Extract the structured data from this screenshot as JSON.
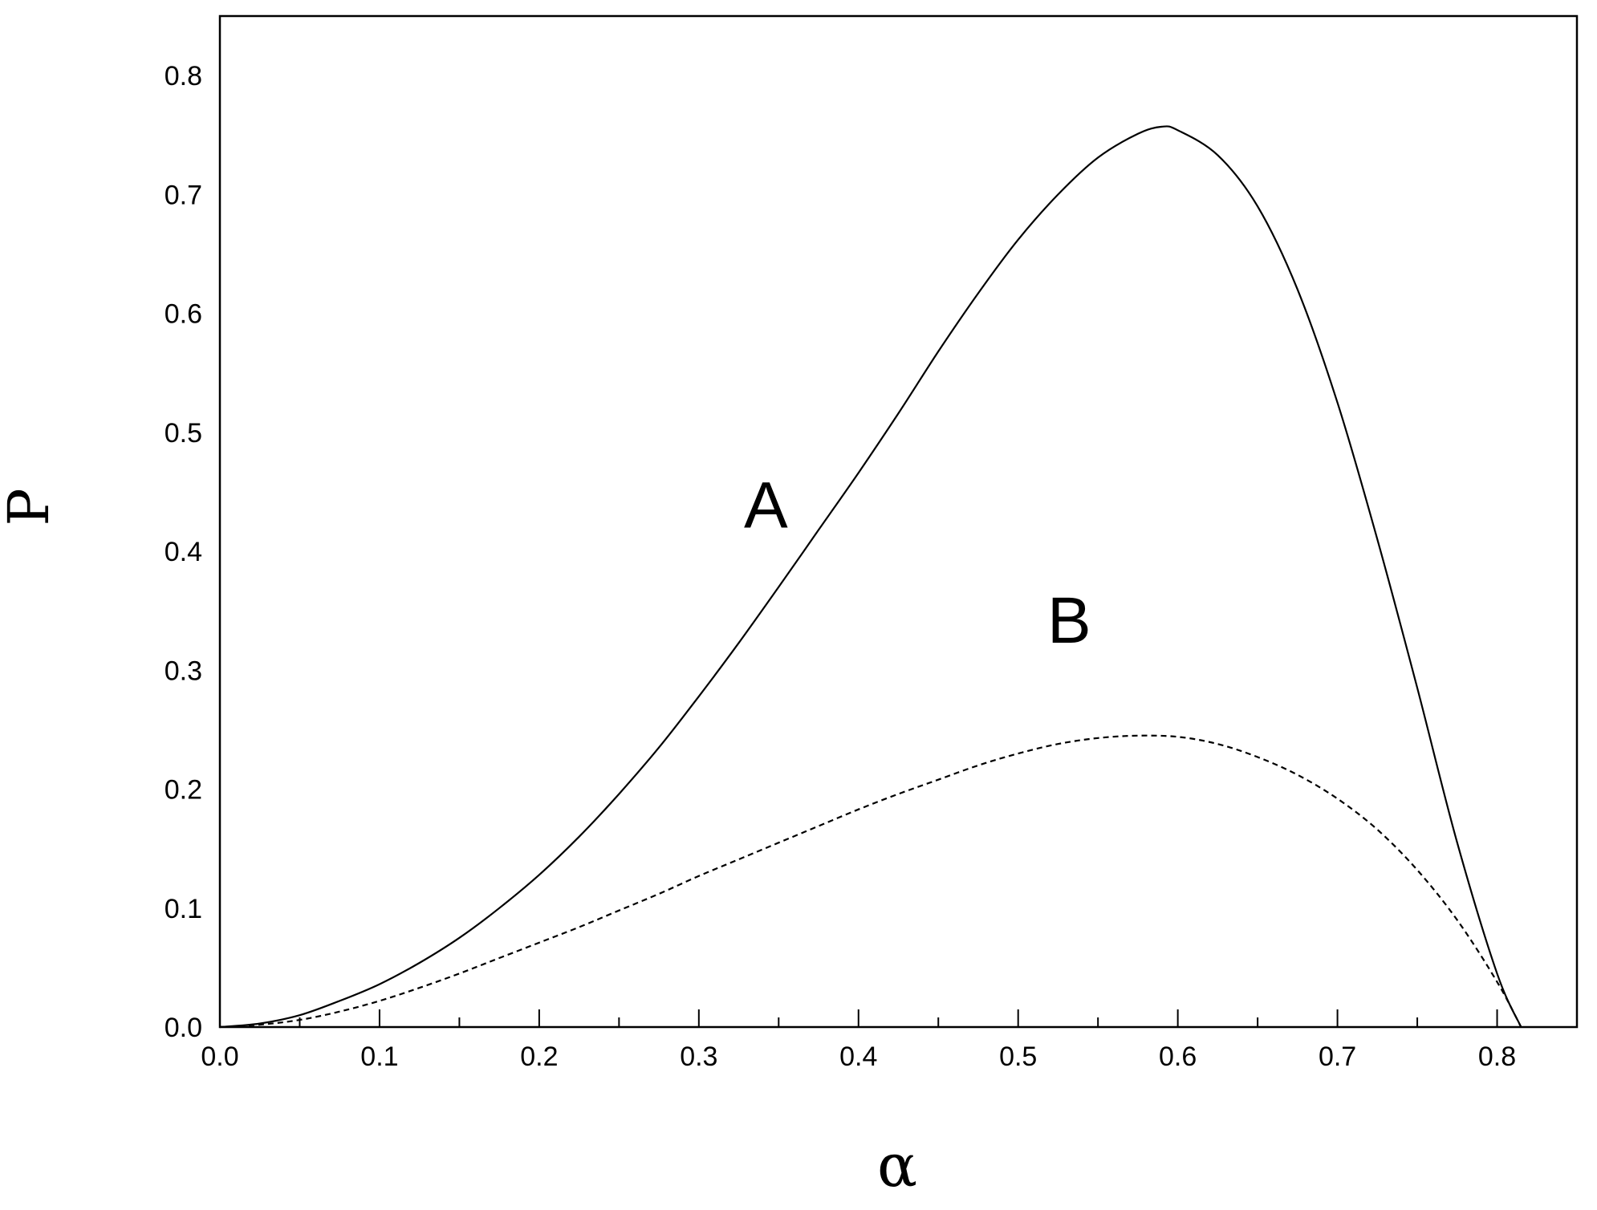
{
  "chart_data": {
    "type": "line",
    "title": "",
    "xlabel": "α",
    "ylabel": "P",
    "xlim": [
      0.0,
      0.85
    ],
    "ylim": [
      0.0,
      0.85
    ],
    "x_ticks": [
      "0.0",
      "0.1",
      "0.2",
      "0.3",
      "0.4",
      "0.5",
      "0.6",
      "0.7",
      "0.8"
    ],
    "y_ticks": [
      "0.0",
      "0.1",
      "0.2",
      "0.3",
      "0.4",
      "0.5",
      "0.6",
      "0.7",
      "0.8"
    ],
    "grid": false,
    "legend": "none",
    "series": [
      {
        "name": "A",
        "style": "solid",
        "x": [
          0.0,
          0.025,
          0.05,
          0.075,
          0.1,
          0.125,
          0.15,
          0.175,
          0.2,
          0.225,
          0.25,
          0.275,
          0.3,
          0.325,
          0.35,
          0.375,
          0.4,
          0.425,
          0.45,
          0.475,
          0.5,
          0.525,
          0.55,
          0.575,
          0.59,
          0.6,
          0.625,
          0.65,
          0.675,
          0.7,
          0.725,
          0.75,
          0.775,
          0.8,
          0.815
        ],
        "y": [
          0.0,
          0.003,
          0.01,
          0.022,
          0.036,
          0.054,
          0.075,
          0.1,
          0.128,
          0.16,
          0.196,
          0.235,
          0.278,
          0.323,
          0.37,
          0.418,
          0.466,
          0.516,
          0.568,
          0.617,
          0.662,
          0.7,
          0.731,
          0.751,
          0.757,
          0.754,
          0.733,
          0.69,
          0.62,
          0.525,
          0.41,
          0.285,
          0.155,
          0.045,
          0.0
        ]
      },
      {
        "name": "B",
        "style": "dashed",
        "x": [
          0.0,
          0.025,
          0.05,
          0.075,
          0.1,
          0.125,
          0.15,
          0.175,
          0.2,
          0.225,
          0.25,
          0.275,
          0.3,
          0.325,
          0.35,
          0.375,
          0.4,
          0.425,
          0.45,
          0.475,
          0.5,
          0.525,
          0.55,
          0.575,
          0.6,
          0.625,
          0.65,
          0.675,
          0.7,
          0.725,
          0.75,
          0.775,
          0.8,
          0.815
        ],
        "y": [
          0.0,
          0.002,
          0.006,
          0.013,
          0.022,
          0.033,
          0.045,
          0.058,
          0.071,
          0.084,
          0.098,
          0.112,
          0.127,
          0.141,
          0.155,
          0.169,
          0.183,
          0.196,
          0.208,
          0.22,
          0.23,
          0.238,
          0.243,
          0.245,
          0.244,
          0.238,
          0.227,
          0.212,
          0.192,
          0.166,
          0.132,
          0.09,
          0.038,
          0.0
        ]
      }
    ],
    "annotations": [
      {
        "text": "A",
        "x": 0.342,
        "y": 0.42
      },
      {
        "text": "B",
        "x": 0.532,
        "y": 0.323
      }
    ]
  }
}
